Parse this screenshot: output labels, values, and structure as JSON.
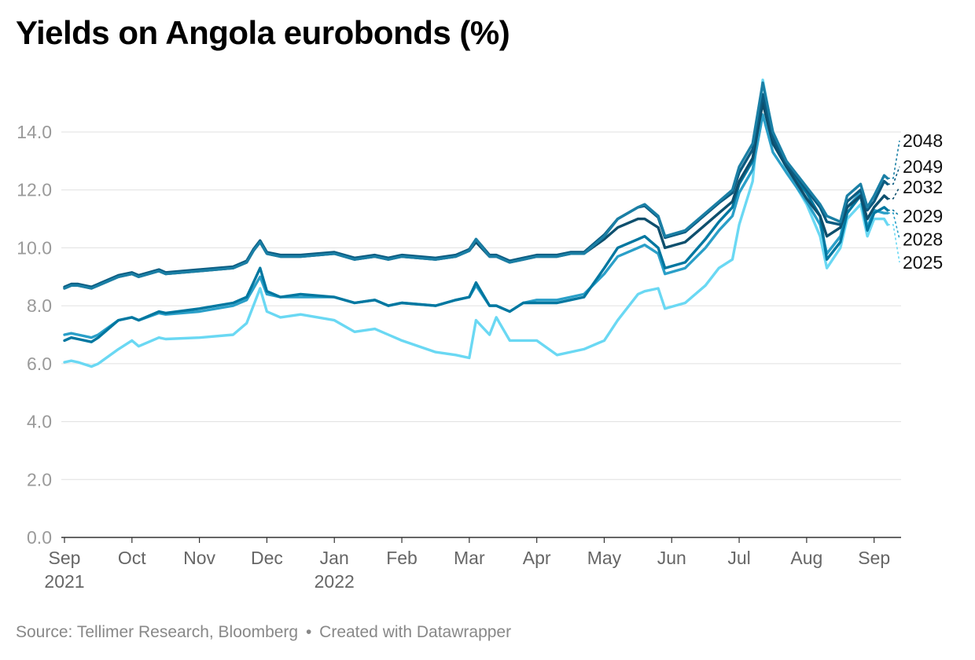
{
  "chart_data": {
    "type": "line",
    "title": "Yields on Angola eurobonds (%)",
    "source": "Source: Tellimer Research, Bloomberg",
    "credit": "Created with Datawrapper",
    "ylim": [
      0,
      14
    ],
    "yticks": [
      0,
      2,
      4,
      6,
      8,
      10,
      12,
      14
    ],
    "ytick_labels": [
      "0.0",
      "2.0",
      "4.0",
      "6.0",
      "8.0",
      "10.0",
      "12.0",
      "14.0"
    ],
    "xlim": [
      0,
      12.4
    ],
    "xtick_positions": [
      0,
      1,
      2,
      3,
      4,
      5,
      6,
      7,
      8,
      9,
      10,
      11,
      12
    ],
    "xtick_labels": [
      "Sep",
      "Oct",
      "Nov",
      "Dec",
      "Jan",
      "Feb",
      "Mar",
      "Apr",
      "May",
      "Jun",
      "Jul",
      "Aug",
      "Sep"
    ],
    "xtick_years": [
      "2021",
      "",
      "",
      "",
      "2022",
      "",
      "",
      "",
      "",
      "",
      "",
      "",
      ""
    ],
    "x_unit": "months since 1 Sep 2021",
    "grid": true,
    "series": [
      {
        "name": "2048",
        "color": "#1a7fa5",
        "label_value": 13.7,
        "x": [
          0,
          0.1,
          0.2,
          0.4,
          0.5,
          0.8,
          1.0,
          1.1,
          1.4,
          1.5,
          2.0,
          2.5,
          2.7,
          2.8,
          2.9,
          3.0,
          3.2,
          3.5,
          4.0,
          4.3,
          4.6,
          4.8,
          5.0,
          5.5,
          5.8,
          6.0,
          6.1,
          6.3,
          6.4,
          6.6,
          6.8,
          7.0,
          7.3,
          7.5,
          7.7,
          8.0,
          8.2,
          8.5,
          8.6,
          8.8,
          8.9,
          9.2,
          9.5,
          9.7,
          9.9,
          10.0,
          10.2,
          10.35,
          10.5,
          10.7,
          11.0,
          11.2,
          11.3,
          11.5,
          11.6,
          11.8,
          11.9,
          12.0,
          12.15,
          12.2
        ],
        "y": [
          8.6,
          8.7,
          8.7,
          8.6,
          8.7,
          9.0,
          9.1,
          9.0,
          9.2,
          9.1,
          9.2,
          9.3,
          9.5,
          9.9,
          10.2,
          9.8,
          9.7,
          9.7,
          9.8,
          9.6,
          9.7,
          9.6,
          9.7,
          9.6,
          9.7,
          9.9,
          10.3,
          9.7,
          9.7,
          9.5,
          9.6,
          9.7,
          9.7,
          9.8,
          9.8,
          10.4,
          11.0,
          11.4,
          11.5,
          11.1,
          10.4,
          10.6,
          11.2,
          11.6,
          12.0,
          12.8,
          13.6,
          15.7,
          14.0,
          13.0,
          12.1,
          11.5,
          11.1,
          10.9,
          11.8,
          12.2,
          11.4,
          11.8,
          12.5,
          12.4
        ],
        "tail": [
          12.2,
          12.4,
          12.4,
          13.7
        ]
      },
      {
        "name": "2049",
        "color": "#0b5b80",
        "label_value": 12.8,
        "x": [
          0,
          0.1,
          0.2,
          0.4,
          0.5,
          0.8,
          1.0,
          1.1,
          1.4,
          1.5,
          2.0,
          2.5,
          2.7,
          2.8,
          2.9,
          3.0,
          3.2,
          3.5,
          4.0,
          4.3,
          4.6,
          4.8,
          5.0,
          5.5,
          5.8,
          6.0,
          6.1,
          6.3,
          6.4,
          6.6,
          6.8,
          7.0,
          7.3,
          7.5,
          7.7,
          8.0,
          8.2,
          8.5,
          8.6,
          8.8,
          8.9,
          9.2,
          9.5,
          9.7,
          9.9,
          10.0,
          10.2,
          10.35,
          10.5,
          10.7,
          11.0,
          11.2,
          11.3,
          11.5,
          11.6,
          11.8,
          11.9,
          12.0,
          12.15,
          12.2
        ],
        "y": [
          8.65,
          8.75,
          8.75,
          8.65,
          8.75,
          9.05,
          9.15,
          9.05,
          9.25,
          9.15,
          9.25,
          9.35,
          9.55,
          9.95,
          10.25,
          9.85,
          9.75,
          9.75,
          9.85,
          9.65,
          9.75,
          9.65,
          9.75,
          9.65,
          9.75,
          9.95,
          10.3,
          9.75,
          9.75,
          9.55,
          9.65,
          9.75,
          9.75,
          9.85,
          9.85,
          10.45,
          11.0,
          11.4,
          11.45,
          11.05,
          10.35,
          10.55,
          11.15,
          11.55,
          11.9,
          12.6,
          13.4,
          15.3,
          13.8,
          12.9,
          12.0,
          11.4,
          10.9,
          10.8,
          11.6,
          12.0,
          11.3,
          11.6,
          12.3,
          12.2
        ],
        "tail": [
          12.2,
          12.2,
          12.2,
          12.8
        ]
      },
      {
        "name": "2032",
        "color": "#0e4f6d",
        "label_value": 12.1,
        "x": [
          0,
          0.1,
          0.2,
          0.4,
          0.5,
          0.8,
          1.0,
          1.1,
          1.4,
          1.5,
          2.0,
          2.5,
          2.7,
          2.8,
          2.9,
          3.0,
          3.2,
          3.5,
          4.0,
          4.3,
          4.6,
          4.8,
          5.0,
          5.5,
          5.8,
          6.0,
          6.1,
          6.3,
          6.4,
          6.6,
          6.8,
          7.0,
          7.3,
          7.5,
          7.7,
          8.0,
          8.2,
          8.5,
          8.6,
          8.8,
          8.9,
          9.2,
          9.5,
          9.7,
          9.9,
          10.0,
          10.2,
          10.35,
          10.5,
          10.7,
          11.0,
          11.2,
          11.3,
          11.5,
          11.6,
          11.8,
          11.9,
          12.0,
          12.15,
          12.2
        ],
        "y": [
          8.6,
          8.7,
          8.7,
          8.6,
          8.7,
          9.0,
          9.1,
          9.0,
          9.2,
          9.1,
          9.2,
          9.3,
          9.5,
          9.9,
          10.2,
          9.8,
          9.7,
          9.7,
          9.8,
          9.6,
          9.7,
          9.6,
          9.7,
          9.6,
          9.7,
          9.9,
          10.2,
          9.7,
          9.7,
          9.5,
          9.6,
          9.7,
          9.7,
          9.8,
          9.8,
          10.3,
          10.7,
          11.0,
          11.0,
          10.7,
          10.0,
          10.2,
          10.8,
          11.2,
          11.6,
          12.3,
          13.1,
          15.0,
          13.6,
          12.8,
          11.7,
          11.1,
          10.4,
          10.7,
          11.4,
          11.8,
          11.0,
          11.4,
          11.8,
          11.7
        ],
        "tail": [
          11.7,
          11.7,
          11.7,
          12.1
        ]
      },
      {
        "name": "2029",
        "color": "#0077a0",
        "label_value": 11.1,
        "x": [
          0,
          0.1,
          0.2,
          0.4,
          0.5,
          0.8,
          1.0,
          1.1,
          1.4,
          1.5,
          2.0,
          2.5,
          2.7,
          2.8,
          2.9,
          3.0,
          3.2,
          3.5,
          4.0,
          4.3,
          4.6,
          4.8,
          5.0,
          5.5,
          5.8,
          6.0,
          6.1,
          6.3,
          6.4,
          6.6,
          6.8,
          7.0,
          7.3,
          7.5,
          7.7,
          8.0,
          8.2,
          8.5,
          8.6,
          8.8,
          8.9,
          9.2,
          9.5,
          9.7,
          9.9,
          10.0,
          10.2,
          10.35,
          10.5,
          10.7,
          11.0,
          11.2,
          11.3,
          11.5,
          11.6,
          11.8,
          11.9,
          12.0,
          12.15,
          12.2
        ],
        "y": [
          6.8,
          6.9,
          6.85,
          6.75,
          6.9,
          7.5,
          7.6,
          7.5,
          7.8,
          7.75,
          7.9,
          8.1,
          8.3,
          8.8,
          9.3,
          8.5,
          8.3,
          8.4,
          8.3,
          8.1,
          8.2,
          8.0,
          8.1,
          8.0,
          8.2,
          8.3,
          8.8,
          8.0,
          8.0,
          7.8,
          8.1,
          8.1,
          8.1,
          8.2,
          8.3,
          9.3,
          10.0,
          10.3,
          10.4,
          10.0,
          9.3,
          9.5,
          10.3,
          10.9,
          11.4,
          12.2,
          13.0,
          15.1,
          13.6,
          12.8,
          11.9,
          11.1,
          9.6,
          10.2,
          11.2,
          11.8,
          10.6,
          11.2,
          11.4,
          11.3
        ],
        "tail": [
          11.3,
          11.3,
          11.3,
          11.1
        ]
      },
      {
        "name": "2028",
        "color": "#2a9fc8",
        "label_value": 10.3,
        "x": [
          0,
          0.1,
          0.2,
          0.4,
          0.5,
          0.8,
          1.0,
          1.1,
          1.4,
          1.5,
          2.0,
          2.5,
          2.7,
          2.8,
          2.9,
          3.0,
          3.2,
          3.5,
          4.0,
          4.3,
          4.6,
          4.8,
          5.0,
          5.5,
          5.8,
          6.0,
          6.1,
          6.3,
          6.4,
          6.6,
          6.8,
          7.0,
          7.3,
          7.5,
          7.7,
          8.0,
          8.2,
          8.5,
          8.6,
          8.8,
          8.9,
          9.2,
          9.5,
          9.7,
          9.9,
          10.0,
          10.2,
          10.35,
          10.5,
          10.7,
          11.0,
          11.2,
          11.3,
          11.5,
          11.6,
          11.8,
          11.9,
          12.0,
          12.15,
          12.2
        ],
        "y": [
          7.0,
          7.05,
          7.0,
          6.9,
          7.0,
          7.5,
          7.6,
          7.5,
          7.75,
          7.7,
          7.8,
          8.0,
          8.2,
          8.6,
          9.0,
          8.4,
          8.3,
          8.3,
          8.3,
          8.1,
          8.2,
          8.0,
          8.1,
          8.0,
          8.2,
          8.3,
          8.7,
          8.0,
          8.0,
          7.8,
          8.1,
          8.2,
          8.2,
          8.3,
          8.4,
          9.1,
          9.7,
          10.0,
          10.1,
          9.8,
          9.1,
          9.3,
          10.0,
          10.6,
          11.1,
          11.9,
          12.7,
          14.6,
          13.3,
          12.6,
          11.6,
          10.8,
          9.8,
          10.4,
          11.4,
          11.9,
          10.7,
          11.3,
          11.2,
          11.2
        ],
        "tail": [
          11.2,
          11.2,
          11.2,
          10.3
        ]
      },
      {
        "name": "2025",
        "color": "#6ad8f3",
        "label_value": 9.5,
        "x": [
          0,
          0.1,
          0.2,
          0.4,
          0.5,
          0.8,
          1.0,
          1.1,
          1.4,
          1.5,
          2.0,
          2.5,
          2.7,
          2.8,
          2.9,
          3.0,
          3.2,
          3.5,
          4.0,
          4.3,
          4.6,
          4.8,
          5.0,
          5.5,
          5.8,
          6.0,
          6.1,
          6.3,
          6.4,
          6.6,
          6.8,
          7.0,
          7.3,
          7.5,
          7.7,
          8.0,
          8.2,
          8.5,
          8.6,
          8.8,
          8.9,
          9.2,
          9.5,
          9.7,
          9.9,
          10.0,
          10.2,
          10.35,
          10.5,
          10.7,
          11.0,
          11.2,
          11.3,
          11.5,
          11.6,
          11.8,
          11.9,
          12.0,
          12.15,
          12.2
        ],
        "y": [
          6.05,
          6.1,
          6.05,
          5.9,
          6.0,
          6.5,
          6.8,
          6.6,
          6.9,
          6.85,
          6.9,
          7.0,
          7.4,
          8.0,
          8.6,
          7.8,
          7.6,
          7.7,
          7.5,
          7.1,
          7.2,
          7.0,
          6.8,
          6.4,
          6.3,
          6.2,
          7.5,
          7.0,
          7.6,
          6.8,
          6.8,
          6.8,
          6.3,
          6.4,
          6.5,
          6.8,
          7.5,
          8.4,
          8.5,
          8.6,
          7.9,
          8.1,
          8.7,
          9.3,
          9.6,
          10.8,
          12.3,
          15.8,
          13.9,
          12.7,
          11.5,
          10.4,
          9.3,
          10.0,
          11.0,
          11.5,
          10.4,
          11.0,
          11.0,
          10.8
        ],
        "tail": [
          10.8,
          10.8,
          10.8,
          9.5
        ]
      }
    ]
  }
}
